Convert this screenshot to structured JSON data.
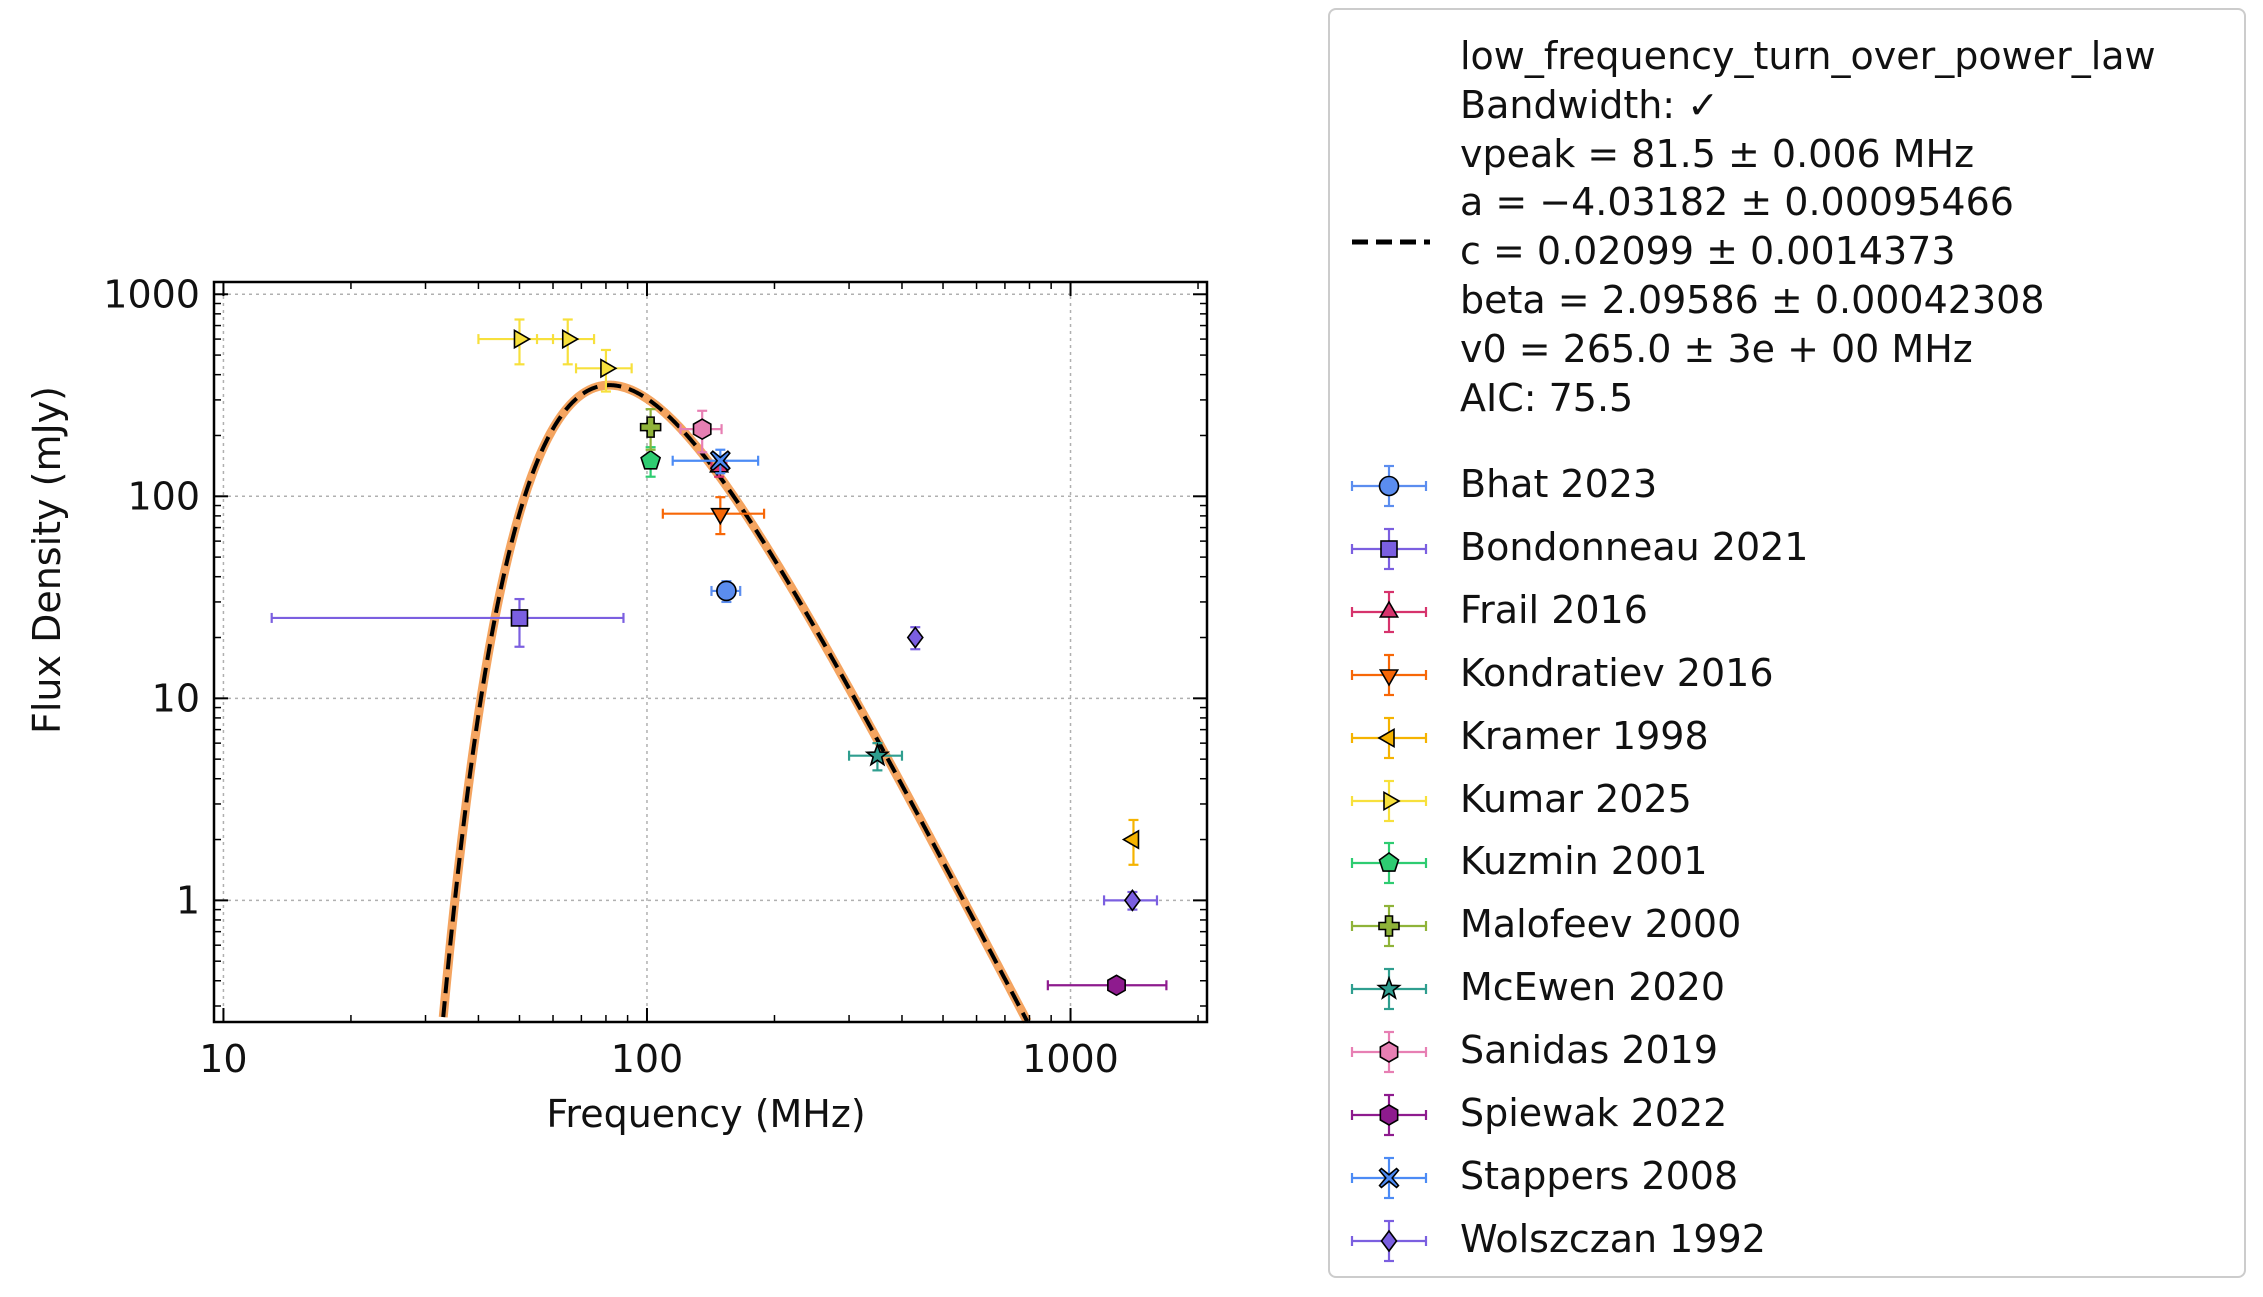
{
  "chart_data": {
    "type": "scatter",
    "xlabel": "Frequency (MHz)",
    "ylabel": "Flux Density (mJy)",
    "xscale": "log",
    "yscale": "log",
    "xlim": [
      9.5,
      2100
    ],
    "ylim": [
      0.25,
      1150
    ],
    "x_ticks": [
      10,
      100,
      1000
    ],
    "x_tick_labels": [
      "10",
      "100",
      "1000"
    ],
    "y_ticks": [
      1,
      10,
      100,
      1000
    ],
    "y_tick_labels": [
      "1",
      "10",
      "100",
      "1000"
    ],
    "grid": true,
    "legend_position": "outside right",
    "fit": {
      "model": "low_frequency_turn_over_power_law",
      "lines": [
        "low_frequency_turn_over_power_law",
        "Bandwidth: ✓",
        "vpeak = 81.5 ± 0.006 MHz",
        "a = −4.03182 ± 0.00095466",
        "c = 0.02099 ± 0.0014373",
        "beta = 2.09586 ± 0.00042308",
        "v0 = 265.0 ± 3e + 00 MHz",
        "AIC: 75.5"
      ],
      "vpeak": 81.5,
      "a": -4.03182,
      "c": 0.02099,
      "beta": 2.09586,
      "v0": 265.0,
      "line_color": "#000000",
      "band_color": "#f4a460"
    },
    "series": [
      {
        "name": "Bhat 2023",
        "marker": "circle",
        "color": "#5b8def",
        "points": [
          {
            "x": 154,
            "y": 34,
            "xerr": [
              12,
              12
            ],
            "yerr": [
              4,
              4
            ]
          }
        ]
      },
      {
        "name": "Bondonneau 2021",
        "marker": "square",
        "color": "#7b5fe0",
        "points": [
          {
            "x": 50,
            "y": 25,
            "xerr": [
              37,
              38
            ],
            "yerr": [
              7,
              6
            ]
          }
        ]
      },
      {
        "name": "Frail 2016",
        "marker": "triangle-up",
        "color": "#d6336c",
        "points": [
          {
            "x": 148,
            "y": 140,
            "xerr": [
              6,
              6
            ],
            "yerr": [
              15,
              15
            ]
          }
        ]
      },
      {
        "name": "Kondratiev 2016",
        "marker": "triangle-down",
        "color": "#f76707",
        "points": [
          {
            "x": 149,
            "y": 82,
            "xerr": [
              40,
              40
            ],
            "yerr": [
              17,
              17
            ]
          }
        ]
      },
      {
        "name": "Kramer 1998",
        "marker": "triangle-left",
        "color": "#f5b300",
        "points": [
          {
            "x": 1408,
            "y": 2.0,
            "xerr": [
              20,
              20
            ],
            "yerr": [
              0.5,
              0.5
            ]
          }
        ]
      },
      {
        "name": "Kumar 2025",
        "marker": "triangle-right",
        "color": "#f7e03c",
        "points": [
          {
            "x": 50,
            "y": 600,
            "xerr": [
              10,
              10
            ],
            "yerr": [
              150,
              150
            ]
          },
          {
            "x": 65,
            "y": 600,
            "xerr": [
              10,
              10
            ],
            "yerr": [
              150,
              150
            ]
          },
          {
            "x": 80,
            "y": 430,
            "xerr": [
              12,
              12
            ],
            "yerr": [
              100,
              100
            ]
          }
        ]
      },
      {
        "name": "Kuzmin 2001",
        "marker": "pentagon",
        "color": "#2ecc71",
        "points": [
          {
            "x": 102,
            "y": 150,
            "xerr": [
              1,
              1
            ],
            "yerr": [
              25,
              25
            ]
          }
        ]
      },
      {
        "name": "Malofeev 2000",
        "marker": "plus",
        "color": "#8fb339",
        "points": [
          {
            "x": 102,
            "y": 220,
            "xerr": [
              2,
              2
            ],
            "yerr": [
              50,
              50
            ]
          }
        ]
      },
      {
        "name": "McEwen 2020",
        "marker": "star",
        "color": "#2f9e8f",
        "points": [
          {
            "x": 350,
            "y": 5.2,
            "xerr": [
              50,
              50
            ],
            "yerr": [
              0.8,
              0.8
            ]
          }
        ]
      },
      {
        "name": "Sanidas 2019",
        "marker": "hexagon",
        "color": "#e77fb3",
        "points": [
          {
            "x": 135,
            "y": 215,
            "xerr": [
              15,
              15
            ],
            "yerr": [
              50,
              50
            ]
          }
        ]
      },
      {
        "name": "Spiewak 2022",
        "marker": "hexagon",
        "color": "#8e1b8e",
        "points": [
          {
            "x": 1284,
            "y": 0.38,
            "xerr": [
              400,
              400
            ],
            "yerr": [
              0.02,
              0.02
            ]
          }
        ]
      },
      {
        "name": "Stappers 2008",
        "marker": "x",
        "color": "#4c8bf5",
        "points": [
          {
            "x": 149,
            "y": 150,
            "xerr": [
              34,
              34
            ],
            "yerr": [
              20,
              20
            ]
          }
        ]
      },
      {
        "name": "Wolszczan 1992",
        "marker": "diamond",
        "color": "#7b5fe0",
        "points": [
          {
            "x": 430,
            "y": 20,
            "xerr": [
              5,
              5
            ],
            "yerr": [
              2.5,
              2.5
            ]
          },
          {
            "x": 1400,
            "y": 1.0,
            "xerr": [
              200,
              200
            ],
            "yerr": [
              0.1,
              0.1
            ]
          }
        ]
      }
    ]
  }
}
